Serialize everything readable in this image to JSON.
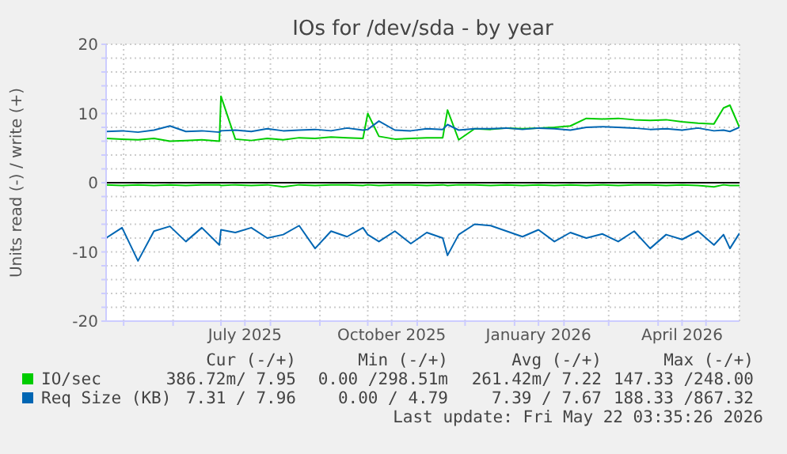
{
  "chart_data": {
    "type": "line",
    "title": "IOs for /dev/sda - by year",
    "ylabel": "Units read (-) / write (+)",
    "x": [
      "2025-04-20",
      "2025-04-30",
      "2025-05-10",
      "2025-05-20",
      "2025-05-30",
      "2025-06-09",
      "2025-06-19",
      "2025-06-30",
      "2025-07-01",
      "2025-07-10",
      "2025-07-20",
      "2025-07-30",
      "2025-08-09",
      "2025-08-19",
      "2025-08-29",
      "2025-09-08",
      "2025-09-18",
      "2025-09-28",
      "2025-10-01",
      "2025-10-08",
      "2025-10-18",
      "2025-10-28",
      "2025-11-07",
      "2025-11-17",
      "2025-11-20",
      "2025-11-27",
      "2025-12-07",
      "2025-12-17",
      "2025-12-27",
      "2026-01-06",
      "2026-01-16",
      "2026-01-26",
      "2026-02-05",
      "2026-02-15",
      "2026-02-25",
      "2026-03-07",
      "2026-03-17",
      "2026-03-27",
      "2026-04-06",
      "2026-04-16",
      "2026-04-26",
      "2026-05-06",
      "2026-05-12",
      "2026-05-16",
      "2026-05-22"
    ],
    "series": [
      {
        "name": "IO/sec",
        "color": "#00cc00",
        "values": [
          6.4,
          6.3,
          6.2,
          6.4,
          6.0,
          6.1,
          6.2,
          6.0,
          12.5,
          6.3,
          6.1,
          6.4,
          6.2,
          6.5,
          6.4,
          6.6,
          6.5,
          6.4,
          10.0,
          6.7,
          6.3,
          6.4,
          6.5,
          6.5,
          10.5,
          6.2,
          7.8,
          7.7,
          7.9,
          7.8,
          7.9,
          8.0,
          8.2,
          9.3,
          9.2,
          9.3,
          9.1,
          9.0,
          9.1,
          8.8,
          8.6,
          8.5,
          10.8,
          11.2,
          8.0
        ]
      },
      {
        "color": "#00cc00",
        "values": [
          -0.3,
          -0.4,
          -0.3,
          -0.4,
          -0.3,
          -0.4,
          -0.3,
          -0.3,
          -0.4,
          -0.3,
          -0.4,
          -0.3,
          -0.6,
          -0.3,
          -0.4,
          -0.3,
          -0.3,
          -0.4,
          -0.3,
          -0.4,
          -0.3,
          -0.3,
          -0.4,
          -0.3,
          -0.4,
          -0.3,
          -0.3,
          -0.4,
          -0.3,
          -0.4,
          -0.3,
          -0.4,
          -0.3,
          -0.4,
          -0.3,
          -0.4,
          -0.3,
          -0.3,
          -0.4,
          -0.3,
          -0.4,
          -0.6,
          -0.3,
          -0.4,
          -0.4
        ]
      },
      {
        "name": "Req Size (KB)",
        "color": "#0066b3",
        "values": [
          7.4,
          7.5,
          7.3,
          7.6,
          8.2,
          7.4,
          7.5,
          7.3,
          7.5,
          7.6,
          7.4,
          7.8,
          7.5,
          7.6,
          7.7,
          7.5,
          7.9,
          7.6,
          7.7,
          8.9,
          7.6,
          7.5,
          7.8,
          7.7,
          8.4,
          7.6,
          7.8,
          7.8,
          7.9,
          7.7,
          7.9,
          7.8,
          7.6,
          8.0,
          8.1,
          8.0,
          7.9,
          7.7,
          7.8,
          7.6,
          7.9,
          7.5,
          7.6,
          7.4,
          8.0
        ]
      },
      {
        "color": "#0066b3",
        "values": [
          -8.0,
          -6.5,
          -11.3,
          -7.0,
          -6.3,
          -8.5,
          -6.5,
          -9.0,
          -6.8,
          -7.2,
          -6.5,
          -8.0,
          -7.5,
          -6.2,
          -9.5,
          -7.0,
          -7.8,
          -6.5,
          -7.5,
          -8.5,
          -7.0,
          -8.8,
          -7.2,
          -8.0,
          -10.5,
          -7.5,
          -6.0,
          -6.2,
          -7.0,
          -7.8,
          -6.8,
          -8.5,
          -7.2,
          -8.0,
          -7.4,
          -8.5,
          -7.0,
          -9.5,
          -7.5,
          -8.2,
          -7.0,
          -9.0,
          -7.5,
          -9.5,
          -7.3
        ]
      }
    ],
    "xlim": [
      "2025-04-20",
      "2026-05-22"
    ],
    "xticks": [
      {
        "value": "2025-05-01",
        "label": null
      },
      {
        "value": "2025-06-01",
        "label": null
      },
      {
        "value": "2025-07-01",
        "label": null
      },
      {
        "value": "2025-07-16",
        "label": "July 2025"
      },
      {
        "value": "2025-08-01",
        "label": null
      },
      {
        "value": "2025-09-01",
        "label": null
      },
      {
        "value": "2025-10-01",
        "label": null
      },
      {
        "value": "2025-10-16",
        "label": "October 2025"
      },
      {
        "value": "2025-11-01",
        "label": null
      },
      {
        "value": "2025-12-01",
        "label": null
      },
      {
        "value": "2026-01-01",
        "label": null
      },
      {
        "value": "2026-01-16",
        "label": "January 2026"
      },
      {
        "value": "2026-02-01",
        "label": null
      },
      {
        "value": "2026-03-01",
        "label": null
      },
      {
        "value": "2026-04-01",
        "label": null
      },
      {
        "value": "2026-04-16",
        "label": "April 2026"
      },
      {
        "value": "2026-05-01",
        "label": null
      }
    ],
    "ylim": [
      -20,
      20
    ],
    "yticks": [
      -20,
      {
        "value": -18,
        "label": null
      },
      {
        "value": -16,
        "label": null
      },
      {
        "value": -14,
        "label": null
      },
      {
        "value": -12,
        "label": null
      },
      -10,
      {
        "value": -8,
        "label": null
      },
      {
        "value": -6,
        "label": null
      },
      {
        "value": -4,
        "label": null
      },
      {
        "value": -2,
        "label": null
      },
      0,
      {
        "value": 2,
        "label": null
      },
      {
        "value": 4,
        "label": null
      },
      {
        "value": 6,
        "label": null
      },
      {
        "value": 8,
        "label": null
      },
      10,
      {
        "value": 12,
        "label": null
      },
      {
        "value": 14,
        "label": null
      },
      {
        "value": 16,
        "label": null
      },
      {
        "value": 18,
        "label": null
      },
      20
    ],
    "ref_lines": [
      {
        "axis": "y",
        "value": 0,
        "color": "#000000"
      }
    ],
    "grid": true,
    "legend": "bottom",
    "marker": "none",
    "line_style": "solid",
    "annotations": [
      "Cur (-/+)",
      "Min (-/+)",
      "Avg (-/+)",
      "Max (-/+)",
      "386.72m/ 7.95",
      "0.00 /298.51m",
      "261.42m/ 7.22",
      "147.33 /248.00",
      "7.31 / 7.96",
      "0.00 / 4.79",
      "7.39 / 7.67",
      "188.33 /867.32",
      "Last update: Fri May 22 03:35:26 2026"
    ]
  }
}
